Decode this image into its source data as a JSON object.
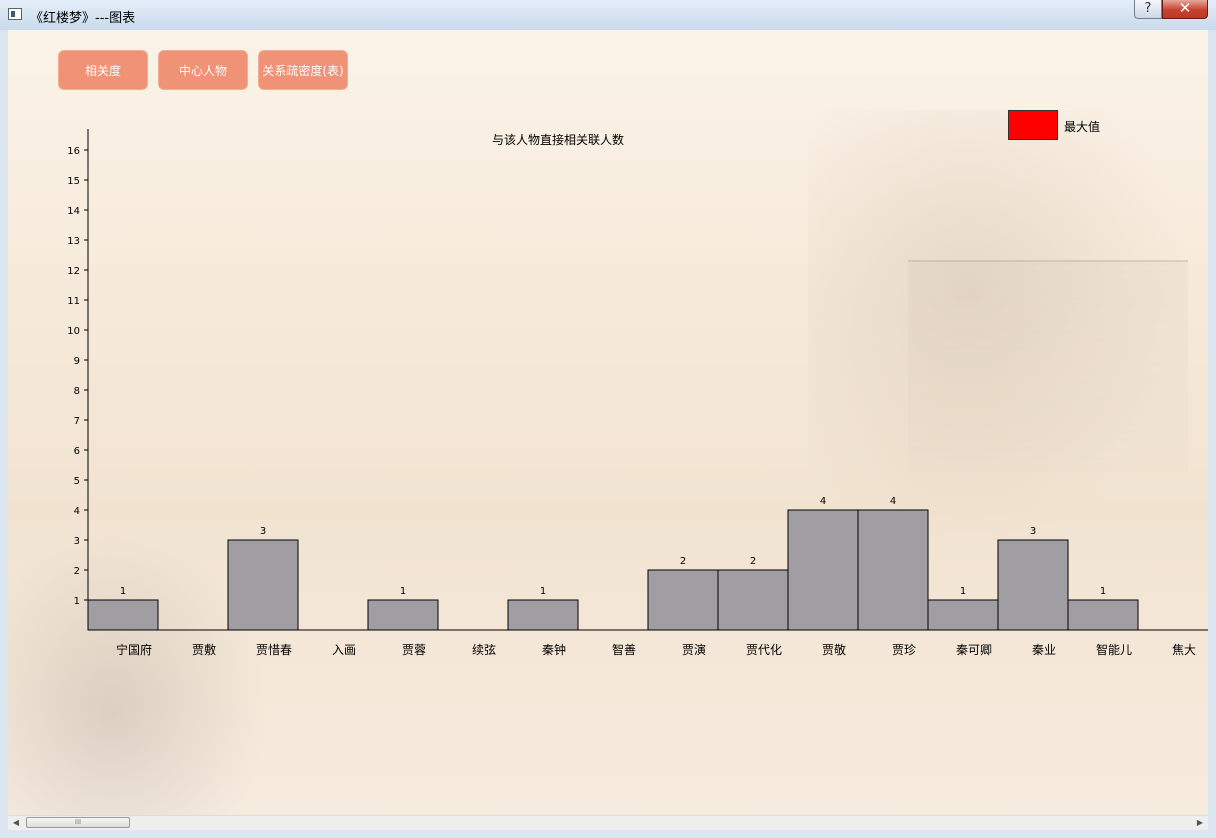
{
  "window": {
    "title": "《红楼梦》---图表",
    "help_label": "?",
    "close_label": "✕"
  },
  "buttons": [
    {
      "label": "相关度"
    },
    {
      "label": "中心人物"
    },
    {
      "label": "关系疏密度(表)"
    }
  ],
  "legend": {
    "label": "最大值",
    "color": "#ff0000"
  },
  "chart_data": {
    "type": "bar",
    "title": "与该人物直接相关联人数",
    "xlabel": "",
    "ylabel": "",
    "ylim": [
      0,
      16
    ],
    "yticks": [
      1,
      2,
      3,
      4,
      5,
      6,
      7,
      8,
      9,
      10,
      11,
      12,
      13,
      14,
      15,
      16
    ],
    "categories": [
      "宁国府",
      "贾敷",
      "贾惜春",
      "入画",
      "贾蓉",
      "续弦",
      "秦钟",
      "智善",
      "贾演",
      "贾代化",
      "贾敬",
      "贾珍",
      "秦可卿",
      "秦业",
      "智能儿",
      "焦大"
    ],
    "values": [
      1,
      0,
      3,
      0,
      1,
      0,
      1,
      0,
      2,
      2,
      4,
      4,
      1,
      3,
      1,
      0
    ],
    "bar_color": "#a09ea2",
    "grid": false
  },
  "scrollbar": {
    "left_icon": "arrow-left-icon",
    "right_icon": "arrow-right-icon",
    "grip": "III"
  }
}
